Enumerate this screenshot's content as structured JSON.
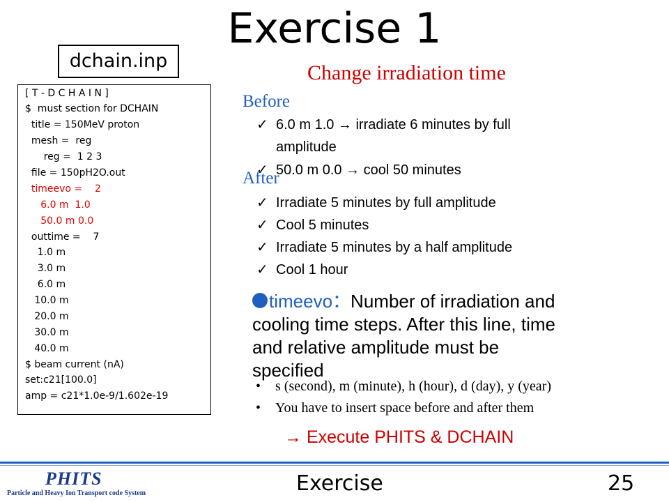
{
  "slide": {
    "title": "Exercise 1",
    "file_label": "dchain.inp",
    "subtitle": "Change irradiation time",
    "before_label": "Before",
    "before_items": [
      {
        "check": "✓",
        "lines": [
          "6.0 m 1.0 → irradiate 6 minutes by full",
          "amplitude"
        ]
      },
      {
        "check": "✓",
        "text": "50.0 m 0.0 →   cool 50 minutes"
      }
    ],
    "after_label": "After",
    "after_items": [
      {
        "check": "✓",
        "text": "Irradiate 5 minutes by full amplitude"
      },
      {
        "check": "✓",
        "text": "Cool 5 minutes"
      },
      {
        "check": "✓",
        "text": "Irradiate 5 minutes by a half amplitude"
      },
      {
        "check": "✓",
        "text": "Cool 1 hour"
      }
    ],
    "description": {
      "keyword": "timeevo：",
      "lines": [
        "Number of irradiation and",
        "cooling time steps. After this line, time",
        "and relative amplitude must be",
        "specified"
      ]
    },
    "bullets": [
      {
        "mark": "•",
        "text": "s (second), m (minute), h (hour), d (day), y (year)"
      },
      {
        "mark": "•",
        "text": "You have to insert space before and after them"
      }
    ],
    "execute": "→   Execute PHITS & DCHAIN",
    "footer": {
      "logo_word": "PHITS",
      "logo_subtitle": "Particle and Heavy Ion Transport code System",
      "section": "Exercise",
      "page": "25"
    }
  },
  "code_lines": [
    {
      "text": "[ T - D C H A I N ]",
      "color": "black"
    },
    {
      "text": "$  must section for DCHAIN",
      "color": "black"
    },
    {
      "text": "  title = 150MeV proton",
      "color": "black"
    },
    {
      "text": "  mesh =  reg",
      "color": "black"
    },
    {
      "text": "      reg =  1 2 3",
      "color": "black"
    },
    {
      "text": "  file = 150pH2O.out",
      "color": "black"
    },
    {
      "text": "  timeevo =    2",
      "color": "red"
    },
    {
      "text": "     6.0 m  1.0",
      "color": "red"
    },
    {
      "text": "     50.0 m 0.0",
      "color": "red"
    },
    {
      "text": "  outtime =    7",
      "color": "black"
    },
    {
      "text": "    1.0 m",
      "color": "black"
    },
    {
      "text": "    3.0 m",
      "color": "black"
    },
    {
      "text": "    6.0 m",
      "color": "black"
    },
    {
      "text": "   10.0 m",
      "color": "black"
    },
    {
      "text": "   20.0 m",
      "color": "black"
    },
    {
      "text": "   30.0 m",
      "color": "black"
    },
    {
      "text": "   40.0 m",
      "color": "black"
    },
    {
      "text": "$ beam current (nA)",
      "color": "black"
    },
    {
      "text": "set:c21[100.0]",
      "color": "black"
    },
    {
      "text": "amp = c21*1.0e-9/1.602e-19",
      "color": "black"
    }
  ],
  "colors": {
    "accent_red": "#cc0000",
    "code_red": "#e00000",
    "accent_blue": "#1f5fbf",
    "logo_blue": "#1a3a8a"
  }
}
